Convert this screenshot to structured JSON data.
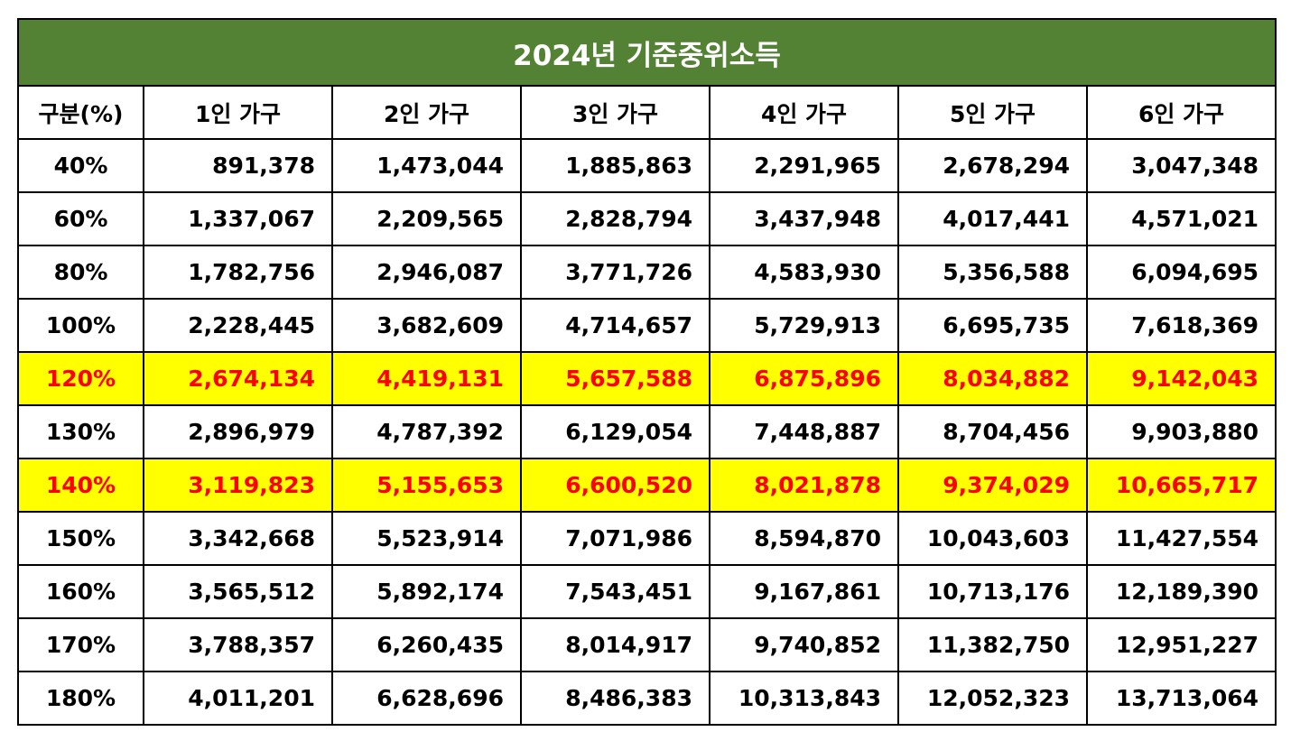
{
  "colors": {
    "title_background": "#548235",
    "title_text": "#ffffff",
    "highlight_background": "#ffff00",
    "highlight_text": "#ff0000",
    "border": "#000000"
  },
  "chart_data": {
    "type": "table",
    "title": "2024년 기준중위소득",
    "columns": [
      "구분(%)",
      "1인 가구",
      "2인 가구",
      "3인 가구",
      "4인 가구",
      "5인 가구",
      "6인 가구"
    ],
    "rows": [
      {
        "label": "40%",
        "values": [
          "891,378",
          "1,473,044",
          "1,885,863",
          "2,291,965",
          "2,678,294",
          "3,047,348"
        ],
        "highlight": false
      },
      {
        "label": "60%",
        "values": [
          "1,337,067",
          "2,209,565",
          "2,828,794",
          "3,437,948",
          "4,017,441",
          "4,571,021"
        ],
        "highlight": false
      },
      {
        "label": "80%",
        "values": [
          "1,782,756",
          "2,946,087",
          "3,771,726",
          "4,583,930",
          "5,356,588",
          "6,094,695"
        ],
        "highlight": false
      },
      {
        "label": "100%",
        "values": [
          "2,228,445",
          "3,682,609",
          "4,714,657",
          "5,729,913",
          "6,695,735",
          "7,618,369"
        ],
        "highlight": false
      },
      {
        "label": "120%",
        "values": [
          "2,674,134",
          "4,419,131",
          "5,657,588",
          "6,875,896",
          "8,034,882",
          "9,142,043"
        ],
        "highlight": true
      },
      {
        "label": "130%",
        "values": [
          "2,896,979",
          "4,787,392",
          "6,129,054",
          "7,448,887",
          "8,704,456",
          "9,903,880"
        ],
        "highlight": false
      },
      {
        "label": "140%",
        "values": [
          "3,119,823",
          "5,155,653",
          "6,600,520",
          "8,021,878",
          "9,374,029",
          "10,665,717"
        ],
        "highlight": true
      },
      {
        "label": "150%",
        "values": [
          "3,342,668",
          "5,523,914",
          "7,071,986",
          "8,594,870",
          "10,043,603",
          "11,427,554"
        ],
        "highlight": false
      },
      {
        "label": "160%",
        "values": [
          "3,565,512",
          "5,892,174",
          "7,543,451",
          "9,167,861",
          "10,713,176",
          "12,189,390"
        ],
        "highlight": false
      },
      {
        "label": "170%",
        "values": [
          "3,788,357",
          "6,260,435",
          "8,014,917",
          "9,740,852",
          "11,382,750",
          "12,951,227"
        ],
        "highlight": false
      },
      {
        "label": "180%",
        "values": [
          "4,011,201",
          "6,628,696",
          "8,486,383",
          "10,313,843",
          "12,052,323",
          "13,713,064"
        ],
        "highlight": false
      }
    ]
  }
}
